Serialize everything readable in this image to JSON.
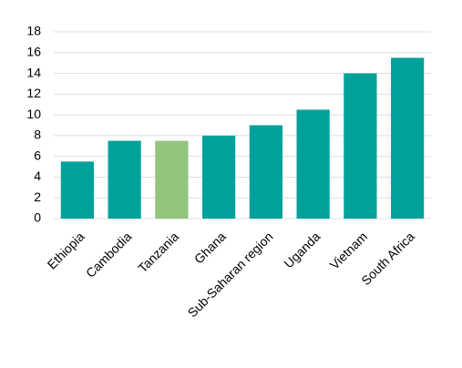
{
  "chart_data": {
    "type": "bar",
    "categories": [
      "Ethiopia",
      "Cambodia",
      "Tanzania",
      "Ghana",
      "Sub-Saharan region",
      "Uganda",
      "Vietnam",
      "South Africa"
    ],
    "values": [
      5.5,
      7.5,
      7.5,
      8,
      9,
      10.5,
      14,
      15.5
    ],
    "colors": [
      "#00a19a",
      "#00a19a",
      "#93c47d",
      "#00a19a",
      "#00a19a",
      "#00a19a",
      "#00a19a",
      "#00a19a"
    ],
    "ylim": [
      0,
      18
    ],
    "yticks": [
      0,
      2,
      4,
      6,
      8,
      10,
      12,
      14,
      16,
      18
    ],
    "grid": true
  }
}
